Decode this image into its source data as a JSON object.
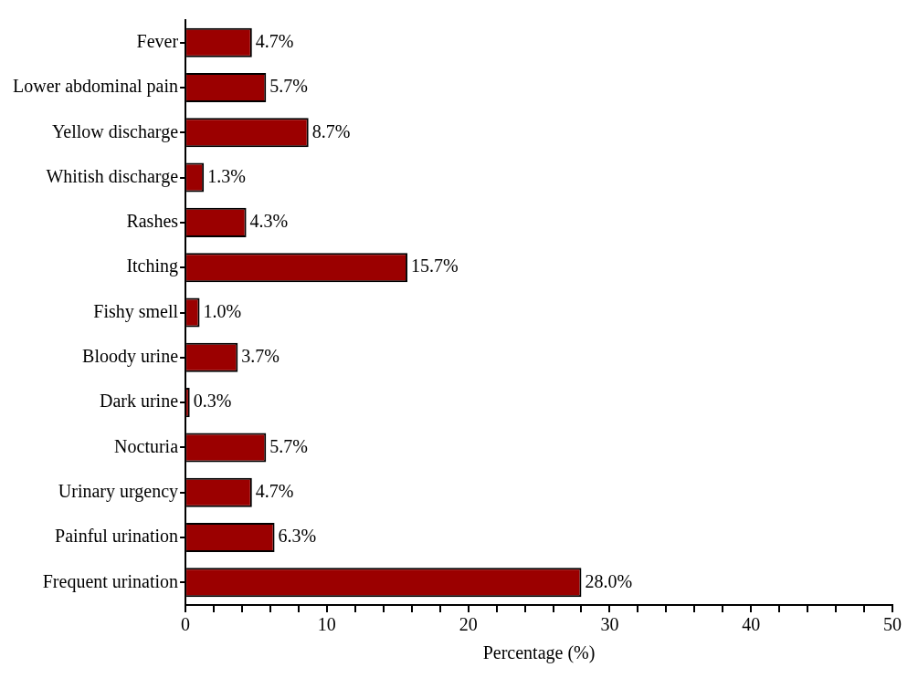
{
  "chart_data": {
    "type": "bar",
    "orientation": "horizontal",
    "xlabel": "Percentage (%)",
    "categories": [
      "Fever",
      "Lower abdominal pain",
      "Yellow discharge",
      "Whitish discharge",
      "Rashes",
      "Itching",
      "Fishy smell",
      "Bloody urine",
      "Dark urine",
      "Nocturia",
      "Urinary urgency",
      "Painful urination",
      "Frequent urination"
    ],
    "values": [
      4.7,
      5.7,
      8.7,
      1.3,
      4.3,
      15.7,
      1.0,
      3.7,
      0.3,
      5.7,
      4.7,
      6.3,
      28.0
    ],
    "value_labels": [
      "4.7%",
      "5.7%",
      "8.7%",
      "1.3%",
      "4.3%",
      "15.7%",
      "1.0%",
      "3.7%",
      "0.3%",
      "5.7%",
      "4.7%",
      "6.3%",
      "28.0%"
    ],
    "color": "#9b0000",
    "xlim": [
      0,
      50
    ],
    "xticks": [
      0,
      {
        "value": 2,
        "label": null
      },
      {
        "value": 4,
        "label": null
      },
      {
        "value": 6,
        "label": null
      },
      {
        "value": 8,
        "label": null
      },
      10,
      {
        "value": 12,
        "label": null
      },
      {
        "value": 14,
        "label": null
      },
      {
        "value": 16,
        "label": null
      },
      {
        "value": 18,
        "label": null
      },
      20,
      {
        "value": 22,
        "label": null
      },
      {
        "value": 24,
        "label": null
      },
      {
        "value": 26,
        "label": null
      },
      {
        "value": 28,
        "label": null
      },
      30,
      {
        "value": 32,
        "label": null
      },
      {
        "value": 34,
        "label": null
      },
      {
        "value": 36,
        "label": null
      },
      {
        "value": 38,
        "label": null
      },
      40,
      {
        "value": 42,
        "label": null
      },
      {
        "value": 44,
        "label": null
      },
      {
        "value": 46,
        "label": null
      },
      {
        "value": 48,
        "label": null
      },
      50
    ],
    "grid": false,
    "legend": false
  }
}
